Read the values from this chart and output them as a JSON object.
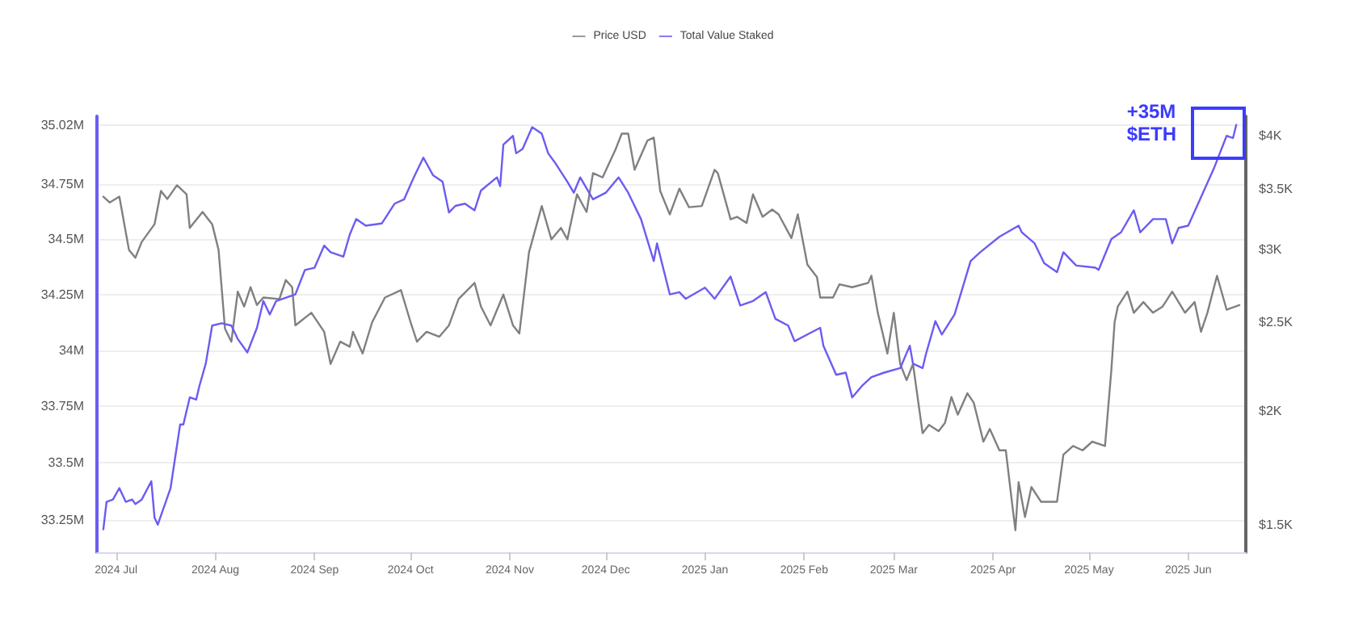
{
  "chart_data": {
    "type": "line",
    "xlim": [
      "2024-06-25",
      "2025-06-19"
    ],
    "xticks": [
      {
        "value": "2024-07-01",
        "label": "2024 Jul"
      },
      {
        "value": "2024-08-01",
        "label": "2024 Aug"
      },
      {
        "value": "2024-09-01",
        "label": "2024 Sep"
      },
      {
        "value": "2024-10-01",
        "label": "2024 Oct"
      },
      {
        "value": "2024-11-01",
        "label": "2024 Nov"
      },
      {
        "value": "2024-12-01",
        "label": "2024 Dec"
      },
      {
        "value": "2025-01-01",
        "label": "2025 Jan"
      },
      {
        "value": "2025-02-01",
        "label": "2025 Feb"
      },
      {
        "value": "2025-03-01",
        "label": "2025 Mar"
      },
      {
        "value": "2025-04-01",
        "label": "2025 Apr"
      },
      {
        "value": "2025-05-01",
        "label": "2025 May"
      },
      {
        "value": "2025-06-01",
        "label": "2025 Jun"
      }
    ],
    "ylim": [
      33.11,
      35.06
    ],
    "yticks": [
      {
        "value": 33.25,
        "label": "33.25M"
      },
      {
        "value": 33.5,
        "label": "33.5M"
      },
      {
        "value": 33.75,
        "label": "33.75M"
      },
      {
        "value": 34,
        "label": "34M"
      },
      {
        "value": 34.25,
        "label": "34.25M"
      },
      {
        "value": 34.5,
        "label": "34.5M"
      },
      {
        "value": 34.75,
        "label": "34.75M"
      },
      {
        "value": 35.02,
        "label": "35.02M"
      }
    ],
    "y2lim": [
      1400,
      4200
    ],
    "y2ticks": [
      {
        "value": 1500,
        "label": "$1.5K"
      },
      {
        "value": 2000,
        "label": "$2K"
      },
      {
        "value": 2500,
        "label": "$2.5K"
      },
      {
        "value": 3000,
        "label": "$3K"
      },
      {
        "value": 3500,
        "label": "$3.5K"
      },
      {
        "value": 4000,
        "label": "$4K"
      }
    ],
    "log": "y2",
    "grid": "y",
    "legend": "top",
    "marker": "none",
    "line_style": "solid",
    "annotations": [
      "+35M\n$ETH"
    ],
    "series": [
      {
        "name": "Price USD",
        "color": "#808080",
        "axis": "y2",
        "x": [
          "2024-06-27",
          "2024-06-29",
          "2024-07-02",
          "2024-07-05",
          "2024-07-07",
          "2024-07-09",
          "2024-07-13",
          "2024-07-15",
          "2024-07-17",
          "2024-07-20",
          "2024-07-23",
          "2024-07-24",
          "2024-07-28",
          "2024-07-31",
          "2024-08-02",
          "2024-08-04",
          "2024-08-06",
          "2024-08-08",
          "2024-08-10",
          "2024-08-12",
          "2024-08-14",
          "2024-08-16",
          "2024-08-21",
          "2024-08-23",
          "2024-08-25",
          "2024-08-26",
          "2024-08-31",
          "2024-09-04",
          "2024-09-06",
          "2024-09-09",
          "2024-09-12",
          "2024-09-13",
          "2024-09-16",
          "2024-09-19",
          "2024-09-23",
          "2024-09-28",
          "2024-10-01",
          "2024-10-03",
          "2024-10-06",
          "2024-10-10",
          "2024-10-13",
          "2024-10-16",
          "2024-10-21",
          "2024-10-23",
          "2024-10-26",
          "2024-10-30",
          "2024-11-02",
          "2024-11-04",
          "2024-11-07",
          "2024-11-11",
          "2024-11-14",
          "2024-11-17",
          "2024-11-19",
          "2024-11-22",
          "2024-11-25",
          "2024-11-27",
          "2024-11-30",
          "2024-12-04",
          "2024-12-06",
          "2024-12-08",
          "2024-12-10",
          "2024-12-14",
          "2024-12-16",
          "2024-12-18",
          "2024-12-21",
          "2024-12-24",
          "2024-12-27",
          "2024-12-31",
          "2025-01-04",
          "2025-01-05",
          "2025-01-09",
          "2025-01-11",
          "2025-01-14",
          "2025-01-16",
          "2025-01-19",
          "2025-01-22",
          "2025-01-24",
          "2025-01-28",
          "2025-01-30",
          "2025-02-02",
          "2025-02-05",
          "2025-02-06",
          "2025-02-10",
          "2025-02-12",
          "2025-02-16",
          "2025-02-21",
          "2025-02-22",
          "2025-02-24",
          "2025-02-27",
          "2025-03-01",
          "2025-03-03",
          "2025-03-05",
          "2025-03-07",
          "2025-03-10",
          "2025-03-12",
          "2025-03-15",
          "2025-03-17",
          "2025-03-19",
          "2025-03-21",
          "2025-03-24",
          "2025-03-26",
          "2025-03-29",
          "2025-03-31",
          "2025-04-03",
          "2025-04-05",
          "2025-04-07",
          "2025-04-08",
          "2025-04-09",
          "2025-04-11",
          "2025-04-13",
          "2025-04-16",
          "2025-04-21",
          "2025-04-23",
          "2025-04-26",
          "2025-04-29",
          "2025-05-02",
          "2025-05-06",
          "2025-05-08",
          "2025-05-09",
          "2025-05-10",
          "2025-05-13",
          "2025-05-15",
          "2025-05-18",
          "2025-05-21",
          "2025-05-24",
          "2025-05-27",
          "2025-05-31",
          "2025-06-03",
          "2025-06-05",
          "2025-06-07",
          "2025-06-10",
          "2025-06-13",
          "2025-06-17"
        ],
        "values": [
          3430,
          3380,
          3430,
          3000,
          2940,
          3060,
          3200,
          3480,
          3410,
          3530,
          3450,
          3170,
          3300,
          3200,
          3000,
          2460,
          2380,
          2700,
          2600,
          2730,
          2610,
          2660,
          2650,
          2780,
          2730,
          2480,
          2560,
          2440,
          2250,
          2380,
          2350,
          2440,
          2310,
          2500,
          2660,
          2710,
          2500,
          2380,
          2440,
          2410,
          2480,
          2650,
          2760,
          2600,
          2480,
          2680,
          2480,
          2430,
          2980,
          3350,
          3080,
          3170,
          3080,
          3450,
          3300,
          3640,
          3600,
          3860,
          4020,
          4020,
          3670,
          3950,
          3980,
          3480,
          3280,
          3500,
          3340,
          3350,
          3670,
          3640,
          3240,
          3260,
          3210,
          3450,
          3260,
          3320,
          3280,
          3090,
          3280,
          2890,
          2800,
          2660,
          2660,
          2750,
          2730,
          2760,
          2810,
          2560,
          2310,
          2560,
          2250,
          2160,
          2250,
          1890,
          1930,
          1900,
          1940,
          2070,
          1980,
          2090,
          2040,
          1850,
          1910,
          1810,
          1810,
          1580,
          1480,
          1670,
          1530,
          1650,
          1590,
          1590,
          1790,
          1830,
          1810,
          1850,
          1830,
          2220,
          2500,
          2600,
          2700,
          2560,
          2630,
          2560,
          2600,
          2700,
          2560,
          2630,
          2440,
          2560,
          2810,
          2580,
          2610
        ]
      },
      {
        "name": "Total Value Staked",
        "color": "#6b5cf2",
        "x": [
          "2024-06-27",
          "2024-06-28",
          "2024-06-30",
          "2024-07-02",
          "2024-07-04",
          "2024-07-06",
          "2024-07-07",
          "2024-07-09",
          "2024-07-12",
          "2024-07-13",
          "2024-07-14",
          "2024-07-18",
          "2024-07-21",
          "2024-07-22",
          "2024-07-24",
          "2024-07-26",
          "2024-07-27",
          "2024-07-29",
          "2024-07-31",
          "2024-08-03",
          "2024-08-06",
          "2024-08-08",
          "2024-08-11",
          "2024-08-14",
          "2024-08-16",
          "2024-08-18",
          "2024-08-20",
          "2024-08-26",
          "2024-08-29",
          "2024-09-01",
          "2024-09-04",
          "2024-09-06",
          "2024-09-10",
          "2024-09-12",
          "2024-09-14",
          "2024-09-17",
          "2024-09-22",
          "2024-09-26",
          "2024-09-29",
          "2024-10-02",
          "2024-10-05",
          "2024-10-08",
          "2024-10-11",
          "2024-10-13",
          "2024-10-15",
          "2024-10-18",
          "2024-10-21",
          "2024-10-23",
          "2024-10-28",
          "2024-10-29",
          "2024-10-30",
          "2024-11-02",
          "2024-11-03",
          "2024-11-05",
          "2024-11-08",
          "2024-11-11",
          "2024-11-13",
          "2024-11-15",
          "2024-11-19",
          "2024-11-21",
          "2024-11-23",
          "2024-11-27",
          "2024-12-01",
          "2024-12-05",
          "2024-12-08",
          "2024-12-12",
          "2024-12-16",
          "2024-12-17",
          "2024-12-21",
          "2024-12-24",
          "2024-12-26",
          "2025-01-01",
          "2025-01-04",
          "2025-01-09",
          "2025-01-12",
          "2025-01-16",
          "2025-01-20",
          "2025-01-23",
          "2025-01-27",
          "2025-01-29",
          "2025-02-02",
          "2025-02-06",
          "2025-02-07",
          "2025-02-11",
          "2025-02-14",
          "2025-02-16",
          "2025-02-19",
          "2025-02-22",
          "2025-02-26",
          "2025-03-03",
          "2025-03-06",
          "2025-03-07",
          "2025-03-10",
          "2025-03-11",
          "2025-03-14",
          "2025-03-16",
          "2025-03-20",
          "2025-03-25",
          "2025-03-28",
          "2025-04-03",
          "2025-04-09",
          "2025-04-10",
          "2025-04-14",
          "2025-04-17",
          "2025-04-21",
          "2025-04-23",
          "2025-04-27",
          "2025-05-03",
          "2025-05-04",
          "2025-05-08",
          "2025-05-11",
          "2025-05-15",
          "2025-05-17",
          "2025-05-21",
          "2025-05-25",
          "2025-05-27",
          "2025-05-29",
          "2025-06-01",
          "2025-06-09",
          "2025-06-13",
          "2025-06-15",
          "2025-06-16"
        ],
        "values": [
          33.21,
          33.33,
          33.34,
          33.39,
          33.33,
          33.34,
          33.32,
          33.34,
          33.42,
          33.26,
          33.23,
          33.39,
          33.67,
          33.67,
          33.79,
          33.78,
          33.84,
          33.94,
          34.11,
          34.12,
          34.11,
          34.05,
          33.99,
          34.1,
          34.22,
          34.16,
          34.22,
          34.25,
          34.36,
          34.37,
          34.47,
          34.44,
          34.42,
          34.52,
          34.59,
          34.56,
          34.57,
          34.66,
          34.68,
          34.78,
          34.87,
          34.79,
          34.76,
          34.62,
          34.65,
          34.66,
          34.63,
          34.72,
          34.78,
          34.74,
          34.93,
          34.97,
          34.89,
          34.91,
          35.01,
          34.98,
          34.89,
          34.85,
          34.76,
          34.71,
          34.78,
          34.68,
          34.71,
          34.78,
          34.71,
          34.59,
          34.4,
          34.48,
          34.25,
          34.26,
          34.23,
          34.28,
          34.23,
          34.33,
          34.2,
          34.22,
          34.26,
          34.14,
          34.11,
          34.04,
          34.07,
          34.1,
          34.02,
          33.89,
          33.9,
          33.79,
          33.84,
          33.88,
          33.9,
          33.92,
          34.02,
          33.94,
          33.92,
          33.98,
          34.13,
          34.07,
          34.16,
          34.4,
          34.44,
          34.51,
          34.56,
          34.53,
          34.48,
          34.39,
          34.35,
          34.44,
          34.38,
          34.37,
          34.36,
          34.5,
          34.53,
          34.63,
          34.53,
          34.59,
          34.59,
          34.48,
          34.55,
          34.56,
          34.82,
          34.97,
          34.96,
          35.02
        ]
      }
    ]
  }
}
